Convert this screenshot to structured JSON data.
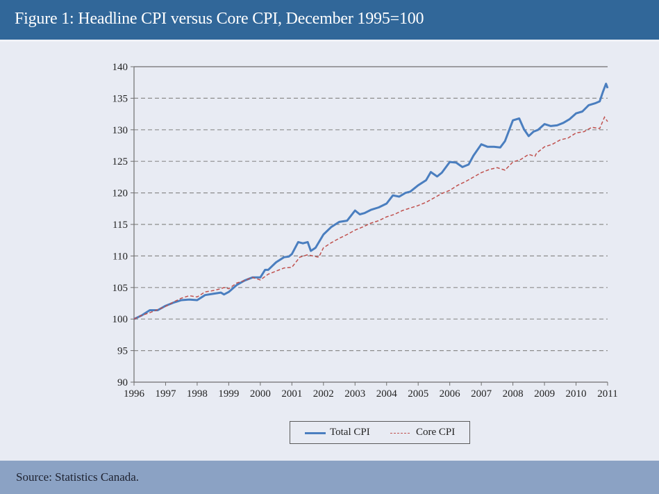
{
  "header": {
    "title": "Figure 1: Headline CPI versus Core CPI, December 1995=100"
  },
  "footer": {
    "source": "Source: Statistics Canada."
  },
  "colors": {
    "header_bg": "#316799",
    "footer_bg": "#8ba2c4",
    "total": "#4a7ebf",
    "core": "#c0504d",
    "grid": "#8c8c8c",
    "axis": "#6e6e6e"
  },
  "chart_data": {
    "type": "line",
    "title": "Figure 1: Headline CPI versus Core CPI, December 1995=100",
    "xlabel": "",
    "ylabel": "",
    "xlim": [
      1996,
      2011
    ],
    "ylim": [
      90,
      140
    ],
    "x_ticks": [
      "1996",
      "1997",
      "1998",
      "1999",
      "2000",
      "2001",
      "2002",
      "2003",
      "2004",
      "2005",
      "2006",
      "2007",
      "2008",
      "2009",
      "2010",
      "2011"
    ],
    "y_ticks": [
      "90",
      "95",
      "100",
      "105",
      "110",
      "115",
      "120",
      "125",
      "130",
      "135",
      "140"
    ],
    "grid": "horizontal-dashed",
    "legend_position": "bottom-center",
    "series": [
      {
        "name": "Total CPI",
        "style": "solid",
        "x": [
          1996.0,
          1996.25,
          1996.5,
          1996.75,
          1997.0,
          1997.25,
          1997.5,
          1997.75,
          1998.0,
          1998.25,
          1998.5,
          1998.75,
          1998.85,
          1999.0,
          1999.25,
          1999.5,
          1999.75,
          2000.0,
          2000.15,
          2000.25,
          2000.5,
          2000.75,
          2000.9,
          2001.0,
          2001.2,
          2001.35,
          2001.5,
          2001.6,
          2001.75,
          2002.0,
          2002.25,
          2002.5,
          2002.75,
          2003.0,
          2003.15,
          2003.3,
          2003.5,
          2003.75,
          2004.0,
          2004.2,
          2004.4,
          2004.6,
          2004.75,
          2005.0,
          2005.25,
          2005.4,
          2005.6,
          2005.75,
          2006.0,
          2006.2,
          2006.4,
          2006.6,
          2006.75,
          2007.0,
          2007.2,
          2007.4,
          2007.6,
          2007.75,
          2008.0,
          2008.2,
          2008.35,
          2008.5,
          2008.65,
          2008.8,
          2009.0,
          2009.2,
          2009.4,
          2009.6,
          2009.8,
          2010.0,
          2010.2,
          2010.4,
          2010.6,
          2010.75,
          2010.85,
          2010.95,
          2011.0
        ],
        "values": [
          100.0,
          100.6,
          101.4,
          101.4,
          102.1,
          102.6,
          103.0,
          103.1,
          103.0,
          103.8,
          104.0,
          104.2,
          103.9,
          104.3,
          105.4,
          106.1,
          106.6,
          106.6,
          107.8,
          107.8,
          109.0,
          109.8,
          109.9,
          110.3,
          112.2,
          112.0,
          112.2,
          110.8,
          111.3,
          113.4,
          114.6,
          115.4,
          115.6,
          117.2,
          116.6,
          116.8,
          117.3,
          117.7,
          118.3,
          119.6,
          119.4,
          120.0,
          120.2,
          121.2,
          122.0,
          123.3,
          122.6,
          123.2,
          124.9,
          124.8,
          124.1,
          124.5,
          125.9,
          127.7,
          127.3,
          127.3,
          127.2,
          128.2,
          131.5,
          131.8,
          130.1,
          129.0,
          129.7,
          130.0,
          130.9,
          130.6,
          130.7,
          131.1,
          131.7,
          132.6,
          132.9,
          133.9,
          134.2,
          134.5,
          136.0,
          137.3,
          136.6
        ]
      },
      {
        "name": "Core CPI",
        "style": "dashed",
        "x": [
          1996.0,
          1996.25,
          1996.5,
          1996.75,
          1997.0,
          1997.25,
          1997.5,
          1997.75,
          1998.0,
          1998.25,
          1998.5,
          1998.75,
          1998.85,
          1999.0,
          1999.25,
          1999.5,
          1999.75,
          2000.0,
          2000.25,
          2000.5,
          2000.75,
          2001.0,
          2001.25,
          2001.5,
          2001.75,
          2001.85,
          2002.0,
          2002.25,
          2002.5,
          2002.75,
          2003.0,
          2003.25,
          2003.5,
          2003.75,
          2004.0,
          2004.25,
          2004.5,
          2004.75,
          2005.0,
          2005.25,
          2005.5,
          2005.75,
          2006.0,
          2006.25,
          2006.5,
          2006.75,
          2007.0,
          2007.25,
          2007.5,
          2007.75,
          2008.0,
          2008.25,
          2008.5,
          2008.7,
          2008.75,
          2009.0,
          2009.25,
          2009.5,
          2009.75,
          2010.0,
          2010.25,
          2010.5,
          2010.75,
          2010.9,
          2011.0
        ],
        "values": [
          100.0,
          100.6,
          101.0,
          101.5,
          102.0,
          102.7,
          103.3,
          103.7,
          103.5,
          104.3,
          104.5,
          104.8,
          105.0,
          104.8,
          105.7,
          106.1,
          106.6,
          106.2,
          107.1,
          107.6,
          108.1,
          108.2,
          109.8,
          110.2,
          109.9,
          109.8,
          111.3,
          112.1,
          112.8,
          113.4,
          114.1,
          114.6,
          115.2,
          115.6,
          116.2,
          116.6,
          117.2,
          117.6,
          118.0,
          118.5,
          119.2,
          119.9,
          120.4,
          121.2,
          121.8,
          122.5,
          123.2,
          123.7,
          124.0,
          123.6,
          124.9,
          125.3,
          126.1,
          125.8,
          126.3,
          127.3,
          127.7,
          128.4,
          128.7,
          129.5,
          129.7,
          130.4,
          130.2,
          132.0,
          131.3
        ]
      }
    ]
  }
}
